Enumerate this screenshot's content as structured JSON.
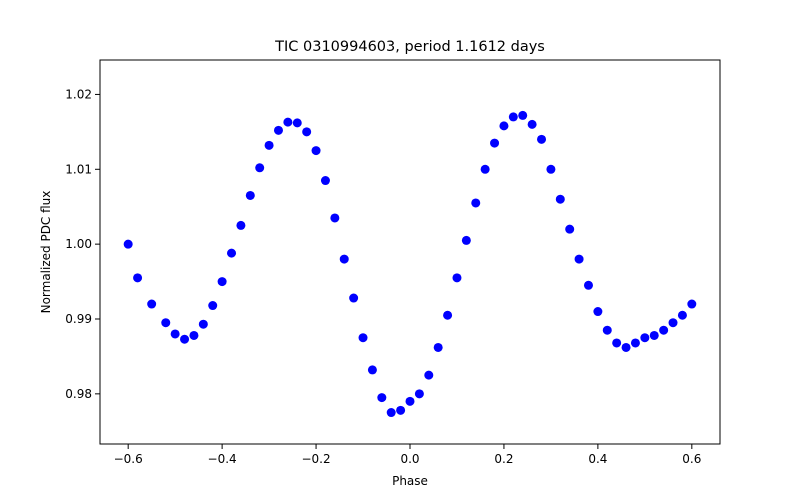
{
  "chart_data": {
    "type": "scatter",
    "title": "TIC 0310994603, period 1.1612 days",
    "xlabel": "Phase",
    "ylabel": "Normalized PDC flux",
    "xlim": [
      -0.66,
      0.66
    ],
    "ylim": [
      0.9733,
      1.0246
    ],
    "xticks": [
      -0.6,
      -0.4,
      -0.2,
      0.0,
      0.2,
      0.4,
      0.6
    ],
    "xtick_labels": [
      "−0.6",
      "−0.4",
      "−0.2",
      "0.0",
      "0.2",
      "0.4",
      "0.6"
    ],
    "yticks": [
      0.98,
      0.99,
      1.0,
      1.01,
      1.02
    ],
    "ytick_labels": [
      "0.98",
      "0.99",
      "1.00",
      "1.01",
      "1.02"
    ],
    "grid": false,
    "series": [
      {
        "color": "#0000ff",
        "marker": "circle",
        "x": [
          -0.6,
          -0.58,
          -0.55,
          -0.52,
          -0.5,
          -0.48,
          -0.46,
          -0.44,
          -0.42,
          -0.4,
          -0.38,
          -0.36,
          -0.34,
          -0.32,
          -0.3,
          -0.28,
          -0.26,
          -0.24,
          -0.22,
          -0.2,
          -0.18,
          -0.16,
          -0.14,
          -0.12,
          -0.1,
          -0.08,
          -0.06,
          -0.04,
          -0.02,
          0.0,
          0.02,
          0.04,
          0.06,
          0.08,
          0.1,
          0.12,
          0.14,
          0.16,
          0.18,
          0.2,
          0.22,
          0.24,
          0.26,
          0.28,
          0.3,
          0.32,
          0.34,
          0.36,
          0.38,
          0.4,
          0.42,
          0.44,
          0.46,
          0.48,
          0.5,
          0.52,
          0.54,
          0.56,
          0.58,
          0.6
        ],
        "y": [
          1.0,
          0.9955,
          0.992,
          0.9895,
          0.988,
          0.9873,
          0.9878,
          0.9893,
          0.9918,
          0.995,
          0.9988,
          1.0025,
          1.0065,
          1.0102,
          1.0132,
          1.0152,
          1.0163,
          1.0162,
          1.015,
          1.0125,
          1.0085,
          1.0035,
          0.998,
          0.9928,
          0.9875,
          0.9832,
          0.9795,
          0.9775,
          0.9778,
          0.979,
          0.98,
          0.9825,
          0.9862,
          0.9905,
          0.9955,
          1.0005,
          1.0055,
          1.01,
          1.0135,
          1.0158,
          1.017,
          1.0172,
          1.016,
          1.014,
          1.01,
          1.006,
          1.002,
          0.998,
          0.9945,
          0.991,
          0.9885,
          0.9868,
          0.9862,
          0.9868,
          0.9875,
          0.9878,
          0.9885,
          0.9895,
          0.9905,
          0.992
        ]
      }
    ]
  }
}
